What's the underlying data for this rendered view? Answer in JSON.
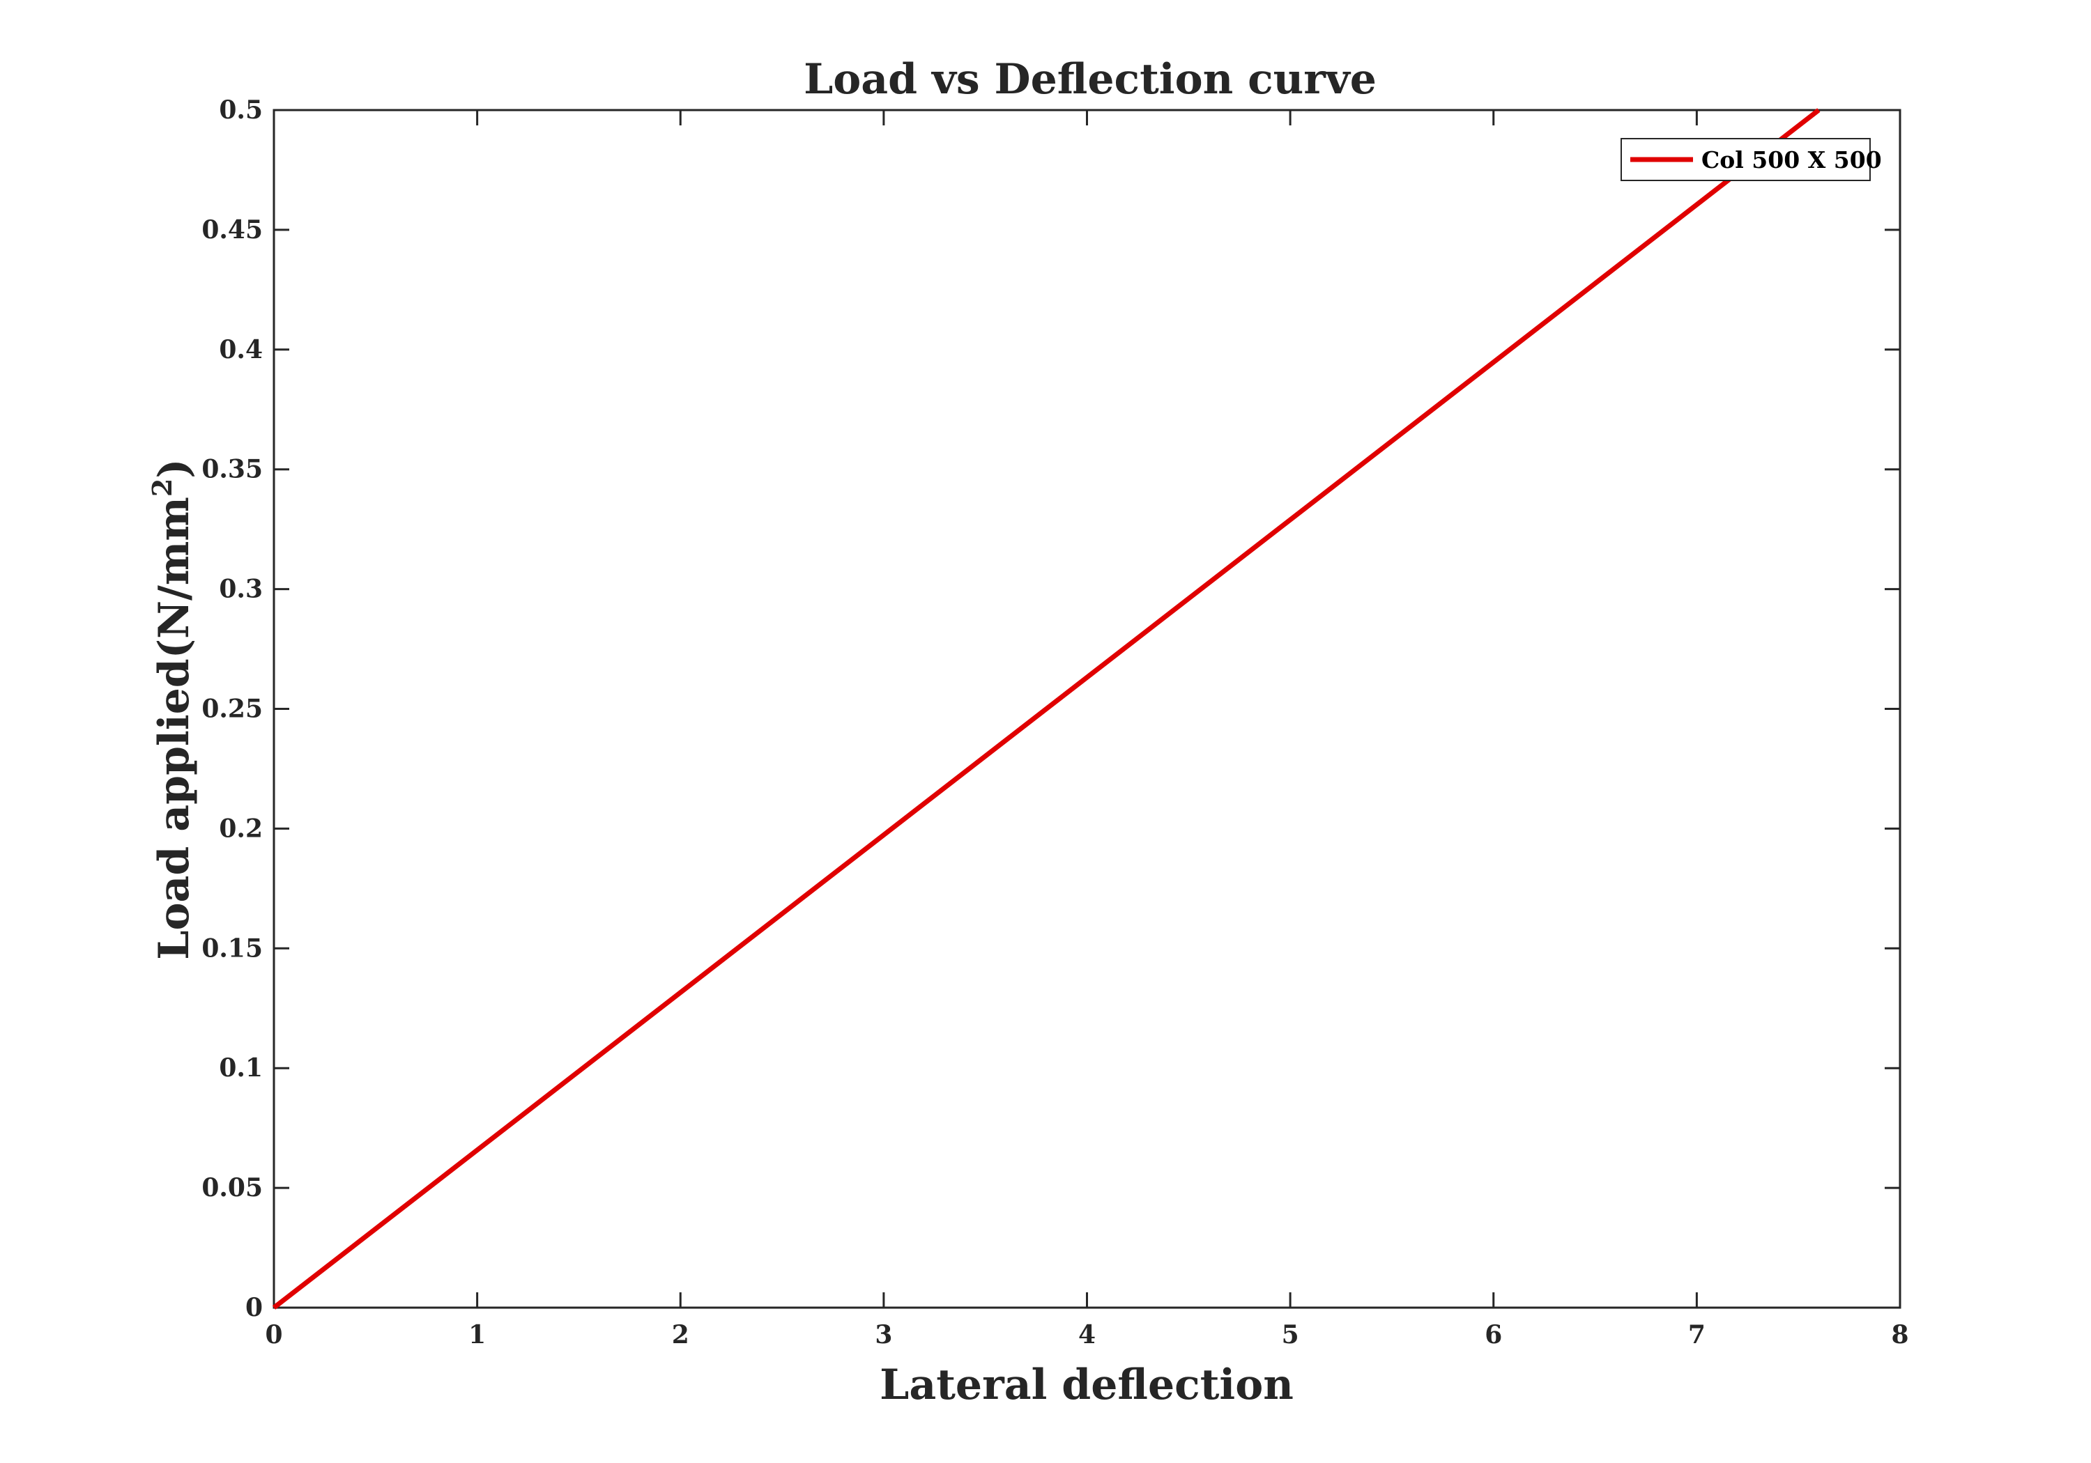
{
  "chart_data": {
    "type": "line",
    "title": "Load vs Deflection curve",
    "xlabel": "Lateral deflection",
    "ylabel": "Load applied(N/mm",
    "ylabel_sup": "2",
    "ylabel_close": ")",
    "xlim": [
      0,
      8
    ],
    "ylim": [
      0,
      0.5
    ],
    "xticks": [
      "0",
      "1",
      "2",
      "3",
      "4",
      "5",
      "6",
      "7",
      "8"
    ],
    "yticks": [
      "0",
      "0.05",
      "0.1",
      "0.15",
      "0.2",
      "0.25",
      "0.3",
      "0.35",
      "0.4",
      "0.45",
      "0.5"
    ],
    "grid": false,
    "legend_position": "top-right",
    "series": [
      {
        "name": "Col 500 X 500",
        "color": "#e00000",
        "x": [
          0,
          7.6
        ],
        "y": [
          0,
          0.5
        ]
      }
    ]
  }
}
